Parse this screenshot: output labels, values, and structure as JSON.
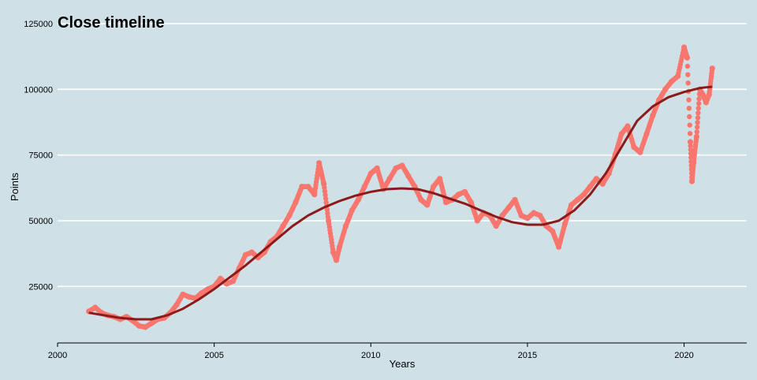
{
  "chart_data": {
    "type": "scatter",
    "title": "Close timeline",
    "xlabel": "Years",
    "ylabel": "Points",
    "xlim": [
      2000,
      2022
    ],
    "ylim": [
      3500,
      128000
    ],
    "x_ticks": [
      "2000",
      "2005",
      "2010",
      "2015",
      "2020"
    ],
    "y_ticks": [
      "25000",
      "50000",
      "75000",
      "100000",
      "125000"
    ],
    "grid": "horizontal",
    "colors": {
      "background": "#cfe0e7",
      "points": "#f8766d",
      "smooth": "#8b1a1a",
      "grid": "#ffffff"
    },
    "series": [
      {
        "type": "scatter",
        "x": [
          2001.0,
          2001.2,
          2001.4,
          2001.6,
          2001.8,
          2002.0,
          2002.2,
          2002.4,
          2002.6,
          2002.8,
          2003.0,
          2003.2,
          2003.4,
          2003.6,
          2003.8,
          2004.0,
          2004.2,
          2004.4,
          2004.6,
          2004.8,
          2005.0,
          2005.2,
          2005.4,
          2005.6,
          2005.8,
          2006.0,
          2006.2,
          2006.4,
          2006.6,
          2006.8,
          2007.0,
          2007.2,
          2007.4,
          2007.6,
          2007.8,
          2008.0,
          2008.2,
          2008.35,
          2008.5,
          2008.65,
          2008.8,
          2008.9,
          2009.0,
          2009.2,
          2009.4,
          2009.6,
          2009.8,
          2010.0,
          2010.2,
          2010.4,
          2010.6,
          2010.8,
          2011.0,
          2011.2,
          2011.4,
          2011.6,
          2011.8,
          2012.0,
          2012.2,
          2012.4,
          2012.6,
          2012.8,
          2013.0,
          2013.2,
          2013.4,
          2013.6,
          2013.8,
          2014.0,
          2014.2,
          2014.4,
          2014.6,
          2014.8,
          2015.0,
          2015.2,
          2015.4,
          2015.6,
          2015.8,
          2016.0,
          2016.2,
          2016.4,
          2016.6,
          2016.8,
          2017.0,
          2017.2,
          2017.4,
          2017.6,
          2017.8,
          2018.0,
          2018.2,
          2018.4,
          2018.6,
          2018.8,
          2019.0,
          2019.2,
          2019.4,
          2019.6,
          2019.8,
          2020.0,
          2020.1,
          2020.2,
          2020.25,
          2020.3,
          2020.4,
          2020.5,
          2020.6,
          2020.7,
          2020.8,
          2020.9
        ],
        "y": [
          15500,
          17000,
          15000,
          14000,
          13500,
          12500,
          13500,
          12000,
          10000,
          9500,
          11000,
          12500,
          13000,
          15000,
          18000,
          22000,
          21000,
          20500,
          22500,
          24000,
          25000,
          28000,
          26000,
          27000,
          32000,
          37000,
          38000,
          36000,
          38000,
          42000,
          44000,
          48000,
          52000,
          57000,
          63000,
          63000,
          60000,
          72000,
          64000,
          50000,
          38000,
          35000,
          40000,
          48000,
          54000,
          58000,
          63000,
          68000,
          70000,
          62000,
          66000,
          70000,
          71000,
          67000,
          63000,
          58000,
          56000,
          63000,
          66000,
          57000,
          58000,
          60000,
          61000,
          57000,
          50000,
          53000,
          52000,
          48000,
          52000,
          55000,
          58000,
          52000,
          51000,
          53000,
          52000,
          48000,
          46000,
          40000,
          49000,
          56000,
          58000,
          60000,
          63000,
          66000,
          64000,
          68000,
          75000,
          83000,
          86000,
          78000,
          76000,
          83000,
          90000,
          96000,
          100000,
          103000,
          105000,
          116000,
          112000,
          80000,
          65000,
          72000,
          82000,
          100000,
          98000,
          95000,
          98000,
          108000
        ]
      },
      {
        "type": "line",
        "x": [
          2001.0,
          2001.5,
          2002.0,
          2002.5,
          2003.0,
          2003.5,
          2004.0,
          2004.5,
          2005.0,
          2005.5,
          2006.0,
          2006.5,
          2007.0,
          2007.5,
          2008.0,
          2008.5,
          2009.0,
          2009.5,
          2010.0,
          2010.5,
          2011.0,
          2011.5,
          2012.0,
          2012.5,
          2013.0,
          2013.5,
          2014.0,
          2014.5,
          2015.0,
          2015.5,
          2016.0,
          2016.5,
          2017.0,
          2017.5,
          2018.0,
          2018.5,
          2019.0,
          2019.5,
          2020.0,
          2020.5,
          2020.9
        ],
        "y": [
          15000,
          14000,
          13000,
          12500,
          12500,
          14000,
          16500,
          20000,
          24000,
          28500,
          33000,
          38000,
          43000,
          48000,
          52000,
          55000,
          57500,
          59500,
          61000,
          62000,
          62300,
          62000,
          60500,
          58500,
          56500,
          54000,
          51500,
          49500,
          48500,
          48500,
          50000,
          54000,
          60000,
          68000,
          78000,
          88000,
          93500,
          97000,
          99000,
          100500,
          101000
        ]
      }
    ]
  }
}
